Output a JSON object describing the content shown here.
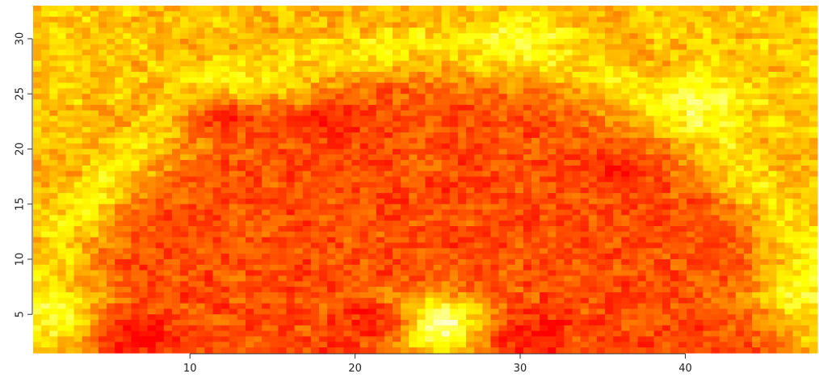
{
  "chart_data": {
    "type": "heatmap",
    "title": "",
    "xlabel": "",
    "ylabel": "",
    "xlim": [
      0.5,
      48
    ],
    "ylim": [
      1.5,
      33
    ],
    "x_ticks": [
      10,
      20,
      30,
      40
    ],
    "x_tick_labels": [
      "10",
      "20",
      "30",
      "40"
    ],
    "y_ticks": [
      5,
      10,
      15,
      20,
      25,
      30
    ],
    "y_tick_labels": [
      "5",
      "10",
      "15",
      "20",
      "25",
      "30"
    ],
    "grid": "cells",
    "grid_cols": 96,
    "grid_rows": 63,
    "color_scale": "heat",
    "colors": {
      "low": "#ff0000",
      "mid": "#ff8000",
      "high": "#ffff00",
      "top": "#ffffa0"
    },
    "features": [
      {
        "kind": "hotspot",
        "x": 25,
        "y": 4,
        "value": 1.0
      },
      {
        "kind": "hotspot",
        "x": 41,
        "y": 24,
        "value": 0.8
      },
      {
        "kind": "hotspot",
        "x": 30,
        "y": 30,
        "value": 0.75
      },
      {
        "kind": "hotspot",
        "x": 12,
        "y": 25.5,
        "value": 0.72
      },
      {
        "kind": "hotspot",
        "x": 2,
        "y": 5,
        "value": 0.75
      },
      {
        "kind": "hotspot",
        "x": 47,
        "y": 7,
        "value": 0.7
      },
      {
        "kind": "coldspot",
        "x": 7,
        "y": 3,
        "value": 0.0
      },
      {
        "kind": "coldspot",
        "x": 30.5,
        "y": 3,
        "value": 0.0
      },
      {
        "kind": "coldspot",
        "x": 21,
        "y": 4,
        "value": 0.05
      },
      {
        "kind": "coldspot",
        "x": 18,
        "y": 22,
        "value": 0.1
      },
      {
        "kind": "coldspot",
        "x": 12,
        "y": 23,
        "value": 0.1
      },
      {
        "kind": "coldspot",
        "x": 36,
        "y": 18,
        "value": 0.1
      }
    ]
  }
}
